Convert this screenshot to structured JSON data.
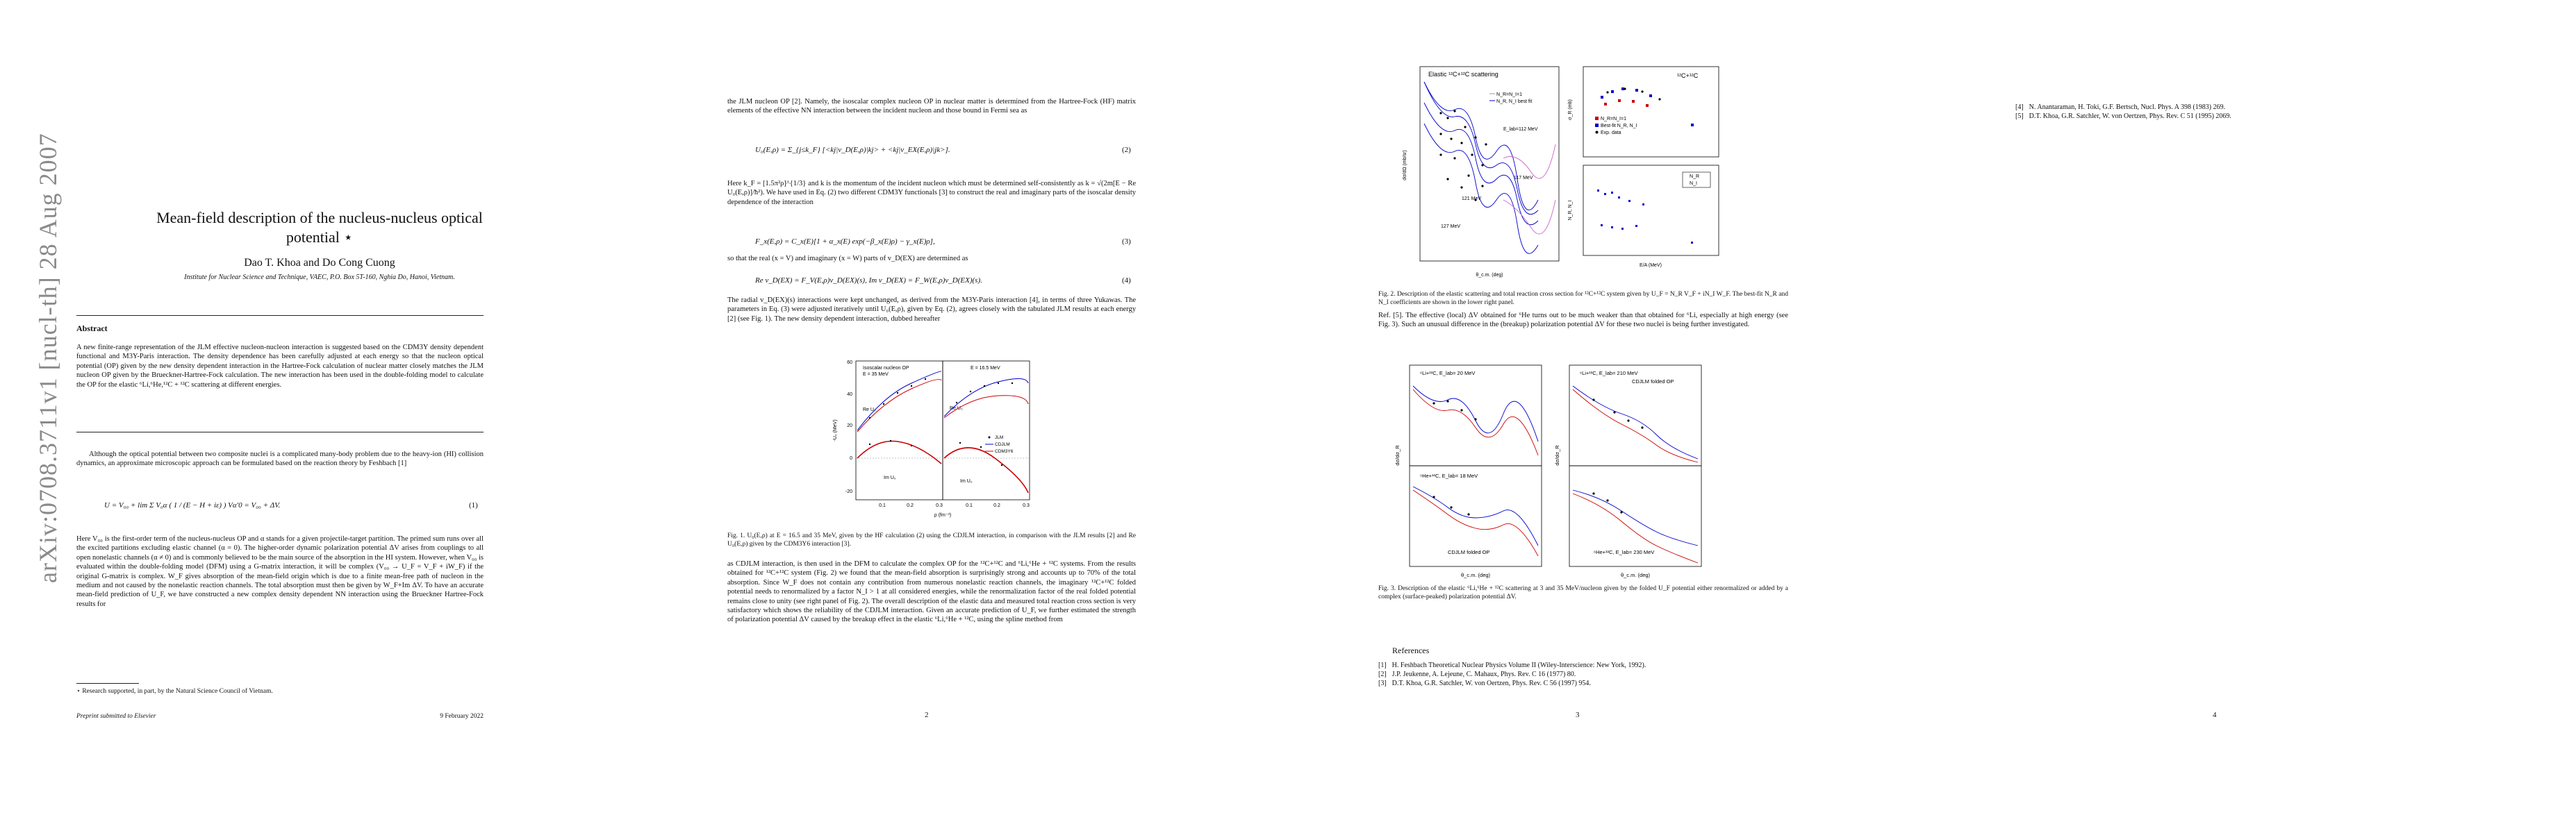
{
  "arxiv_stamp": "arXiv:0708.3711v1  [nucl-th]  28 Aug 2007",
  "page1": {
    "title_line1": "Mean-field description of the nucleus-nucleus optical",
    "title_line2": "potential ⋆",
    "authors": "Dao T. Khoa and Do Cong Cuong",
    "affiliation": "Institute for Nuclear Science and Technique, VAEC, P.O. Box 5T-160, Nghia Do, Hanoi, Vietnam.",
    "abstract_heading": "Abstract",
    "abstract": "A new finite-range representation of the JLM effective nucleon-nucleon interaction is suggested based on the CDM3Y density dependent functional and M3Y-Paris interaction. The density dependence has been carefully adjusted at each energy so that the nucleon optical potential (OP) given by the new density dependent interaction in the Hartree-Fock calculation of nuclear matter closely matches the JLM nucleon OP given by the Brueckner-Hartree-Fock calculation. The new interaction has been used in the double-folding model to calculate the OP for the elastic ⁶Li,⁶He,¹²C + ¹²C scattering at different energies.",
    "body1": "Although the optical potential between two composite nuclei is a complicated many-body problem due to the heavy-ion (HI) collision dynamics, an approximate microscopic approach can be formulated based on the reaction theory by Feshbach [1]",
    "eq1": "U = V₀₀ + lim Σ V₀α ( 1 / (E − H + iε) ) Vα′0 = V₀₀ + ΔV.",
    "eq1_no": "(1)",
    "body2": "Here V₀₀ is the first-order term of the nucleus-nucleus OP and α stands for a given projectile-target partition. The primed sum runs over all the excited partitions excluding elastic channel (α = 0). The higher-order dynamic polarization potential ΔV arises from couplings to all open nonelastic channels (α ≠ 0) and is commonly believed to be the main source of the absorption in the HI system. However, when V₀₀ is evaluated within the double-folding model (DFM) using a G-matrix interaction, it will be complex (V₀₀ → U_F = V_F + iW_F) if the original G-matrix is complex. W_F gives absorption of the mean-field origin which is due to a finite mean-free path of nucleon in the medium and not caused by the nonelastic reaction channels. The total absorption must then be given by W_F+Im ΔV. To have an accurate mean-field prediction of U_F, we have constructed a new complex density dependent NN interaction using the Brueckner Hartree-Fock results for",
    "footnote": "⋆ Research supported, in part, by the Natural Science Council of Vietnam.",
    "footer_left": "Preprint submitted to Elsevier",
    "footer_right": "9 February 2022"
  },
  "page2": {
    "body1": "the JLM nucleon OP [2]. Namely, the isoscalar complex nucleon OP in nuclear matter is determined from the Hartree-Fock (HF) matrix elements of the effective NN interaction between the incident nucleon and those bound in Fermi sea as",
    "eq2": "U₀(E,ρ) = Σ_{j≤k_F} [<kj|v_D(E,ρ)|kj> + <kj|v_EX(E,ρ)|jk>].",
    "eq2_no": "(2)",
    "body2": "Here k_F = [1.5π²ρ]^{1/3} and k is the momentum of the incident nucleon which must be determined self-consistently as k = √(2m[E − Re U₀(E,ρ)]/ħ²). We have used in Eq. (2) two different CDM3Y functionals [3] to construct the real and imaginary parts of the isoscalar density dependence of the interaction",
    "eq3": "F_x(E,ρ) = C_x(E)[1 + α_x(E) exp(−β_x(E)ρ) − γ_x(E)ρ],",
    "eq3_no": "(3)",
    "body3": "so that the real (x = V) and imaginary (x = W) parts of v_D(EX) are determined as",
    "eq4": "Re v_D(EX) = F_V(E,ρ)v_D(EX)(s),  Im v_D(EX) = F_W(E,ρ)v_D(EX)(s).",
    "eq4_no": "(4)",
    "body4": "The radial v_D(EX)(s) interactions were kept unchanged, as derived from the M3Y-Paris interaction [4], in terms of three Yukawas. The parameters in Eq. (3) were adjusted iteratively until U₀(E,ρ), given by Eq. (2), agrees closely with the tabulated JLM results at each energy [2] (see Fig. 1). The new density dependent interaction, dubbed hereafter",
    "fig1_caption": "Fig. 1. U₀(E,ρ) at E = 16.5 and 35 MeV, given by the HF calculation (2) using the CDJLM interaction, in comparison with the JLM results [2] and Re U₀(E,ρ) given by the CDM3Y6 interaction [3].",
    "body5": "as CDJLM interaction, is then used in the DFM to calculate the complex OP for the ¹²C+¹²C and ⁶Li,⁶He + ¹²C systems. From the results obtained for ¹²C+¹²C system (Fig. 2) we found that the mean-field absorption is surprisingly strong and accounts up to 70% of the total absorption. Since W_F does not contain any contribution from numerous nonelastic reaction channels, the imaginary ¹²C+¹²C folded potential needs to renormalized by a factor N_I > 1 at all considered energies, while the renormalization factor of the real folded potential remains close to unity (see right panel of Fig. 2). The overall description of the elastic data and measured total reaction cross section is very satisfactory which shows the reliability of the CDJLM interaction. Given an accurate prediction of U_F, we further estimated the strength of polarization potential ΔV caused by the breakup effect in the elastic ⁶Li,⁶He + ¹²C, using the spline method from",
    "page_num": "2"
  },
  "page3": {
    "fig2_caption": "Fig. 2. Description of the elastic scattering and total reaction cross section for ¹²C+¹²C system given by U_F = N_R V_F + iN_I W_F. The best-fit N_R and N_I coefficients are shown in the lower right panel.",
    "body1": "Ref. [5]. The effective (local) ΔV obtained for ⁶He turns out to be much weaker than that obtained for ⁶Li, especially at high energy (see Fig. 3). Such an unusual difference in the (breakup) polarization potential ΔV for these two nuclei is being further investigated.",
    "fig3_caption": "Fig. 3. Description of the elastic ⁶Li,⁶He + ¹²C scattering at 3 and 35 MeV/nucleon given by the folded U_F potential either renormalized or added by a complex (surface-peaked) polarization potential ΔV.",
    "references_heading": "References",
    "refs": [
      {
        "num": "[1]",
        "text": "H. Feshbach Theoretical Nuclear Physics Volume II (Wiley-Interscience: New York, 1992)."
      },
      {
        "num": "[2]",
        "text": "J.P. Jeukenne, A. Lejeune, C. Mahaux, Phys. Rev. C 16 (1977) 80."
      },
      {
        "num": "[3]",
        "text": "D.T. Khoa, G.R. Satchler, W. von Oertzen, Phys. Rev. C 56 (1997) 954."
      }
    ],
    "page_num": "3"
  },
  "page4": {
    "refs": [
      {
        "num": "[4]",
        "text": "N. Anantaraman, H. Toki, G.F. Bertsch, Nucl. Phys. A 398 (1983) 269."
      },
      {
        "num": "[5]",
        "text": "D.T. Khoa, G.R. Satchler, W. von Oertzen, Phys. Rev. C 51 (1995) 2069."
      }
    ],
    "page_num": "4"
  },
  "figures": {
    "fig1": {
      "left_title1": "Isoscalar nucleon OP",
      "left_title2": "E = 35 MeV",
      "right_title": "E = 16.5 MeV",
      "ylabel": "-U₀ (MeV)",
      "xlabel": "ρ (fm⁻³)",
      "label_re": "Re U₀",
      "label_im": "Im U₀",
      "legend": [
        "JLM",
        "CDJLM",
        "CDM3Y6"
      ],
      "yticks": [
        "60",
        "40",
        "20",
        "0",
        "-20"
      ],
      "xticks": [
        "0.1",
        "0.2",
        "0.3"
      ]
    },
    "fig2": {
      "left_title": "Elastic ¹²C+¹²C scattering",
      "legend1": "N_R=N_I=1",
      "legend2": "N_R, N_I best fit",
      "ylabel": "dσ/dΩ (mb/sr)",
      "xlabel": "θ_c.m. (deg)",
      "energies": [
        "E_lab=112 MeV",
        "117 MeV",
        "121 MeV",
        "127 MeV"
      ],
      "right_title": "¹²C+¹²C",
      "top_ylabel": "σ_R (mb)",
      "top_legend": [
        "N_R=N_I=1",
        "Best-fit N_R, N_I",
        "Exp. data"
      ],
      "bottom_ylabel": "N_R, N_I",
      "bottom_legend": [
        "N_R",
        "N_I"
      ],
      "xaxis": "E/A (MeV)"
    },
    "fig3": {
      "p1": "⁶Li+¹²C, E_lab= 20 MeV",
      "p2": "⁶Li+¹²C, E_lab= 210 MeV",
      "p3": "⁶He+¹²C, E_lab= 18 MeV",
      "p4": "⁶He+¹²C, E_lab= 230 MeV",
      "folded": "CDJLM folded OP",
      "ylabel": "dσ/dσ_R",
      "xlabel": "θ_c.m. (deg)"
    }
  }
}
